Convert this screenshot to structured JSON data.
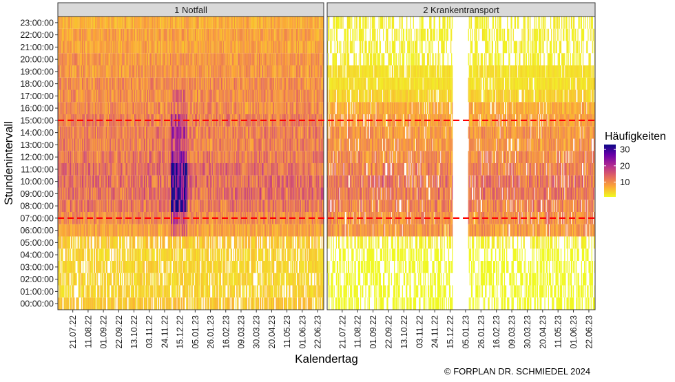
{
  "chart_data": {
    "type": "heatmap",
    "facets": [
      {
        "label": "1 Notfall"
      },
      {
        "label": "2 Krankentransport"
      }
    ],
    "xlabel": "Kalendertag",
    "ylabel": "Stundenintervall",
    "x_ticks": [
      "21.07.22",
      "11.08.22",
      "01.09.22",
      "22.09.22",
      "13.10.22",
      "03.11.22",
      "24.11.22",
      "15.12.22",
      "05.01.23",
      "26.01.23",
      "16.02.23",
      "09.03.23",
      "30.03.23",
      "20.04.23",
      "11.05.23",
      "01.06.23",
      "22.06.23"
    ],
    "x_range": [
      "2022-07-01",
      "2023-06-30"
    ],
    "y_ticks": [
      "00:00:00",
      "01:00:00",
      "02:00:00",
      "03:00:00",
      "04:00:00",
      "05:00:00",
      "06:00:00",
      "07:00:00",
      "08:00:00",
      "09:00:00",
      "10:00:00",
      "11:00:00",
      "12:00:00",
      "13:00:00",
      "14:00:00",
      "15:00:00",
      "16:00:00",
      "17:00:00",
      "18:00:00",
      "19:00:00",
      "20:00:00",
      "21:00:00",
      "22:00:00",
      "23:00:00"
    ],
    "reference_lines": [
      {
        "y": "07:00:00",
        "color": "#ff0000",
        "style": "dashed"
      },
      {
        "y": "15:00:00",
        "color": "#ff0000",
        "style": "dashed"
      }
    ],
    "legend": {
      "title": "Häufigkeiten",
      "ticks": [
        10,
        20,
        30
      ],
      "range": [
        1,
        33
      ],
      "colors": [
        "#f0f921",
        "#fca636",
        "#e16462",
        "#b12a90",
        "#6a00a8",
        "#0d0887"
      ],
      "placement": "right"
    },
    "approx_mean_counts": {
      "1 Notfall": {
        "00:00:00": 5,
        "01:00:00": 4,
        "02:00:00": 4,
        "03:00:00": 4,
        "04:00:00": 4,
        "05:00:00": 5,
        "06:00:00": 8,
        "07:00:00": 10,
        "08:00:00": 12,
        "09:00:00": 13,
        "10:00:00": 13,
        "11:00:00": 13,
        "12:00:00": 12,
        "13:00:00": 11,
        "14:00:00": 11,
        "15:00:00": 11,
        "16:00:00": 10,
        "17:00:00": 10,
        "18:00:00": 10,
        "19:00:00": 9,
        "20:00:00": 9,
        "21:00:00": 8,
        "22:00:00": 8,
        "23:00:00": 7
      },
      "2 Krankentransport": {
        "00:00:00": 1,
        "01:00:00": 1,
        "02:00:00": 1,
        "03:00:00": 1,
        "04:00:00": 1,
        "05:00:00": 2,
        "06:00:00": 9,
        "07:00:00": 10,
        "08:00:00": 11,
        "09:00:00": 12,
        "10:00:00": 12,
        "11:00:00": 11,
        "12:00:00": 10,
        "13:00:00": 9,
        "14:00:00": 9,
        "15:00:00": 8,
        "16:00:00": 7,
        "17:00:00": 4,
        "18:00:00": 3,
        "19:00:00": 3,
        "20:00:00": 2,
        "21:00:00": 2,
        "22:00:00": 2,
        "23:00:00": 2
      }
    },
    "peak_period": {
      "from": "2022-12-03",
      "to": "2022-12-25",
      "facet": "1 Notfall",
      "peak_value": 33
    },
    "gap_period": {
      "from": "2022-12-19",
      "to": "2023-01-08",
      "facet": "2 Krankentransport"
    }
  },
  "copyright": "© FORPLAN DR. SCHMIEDEL 2024"
}
